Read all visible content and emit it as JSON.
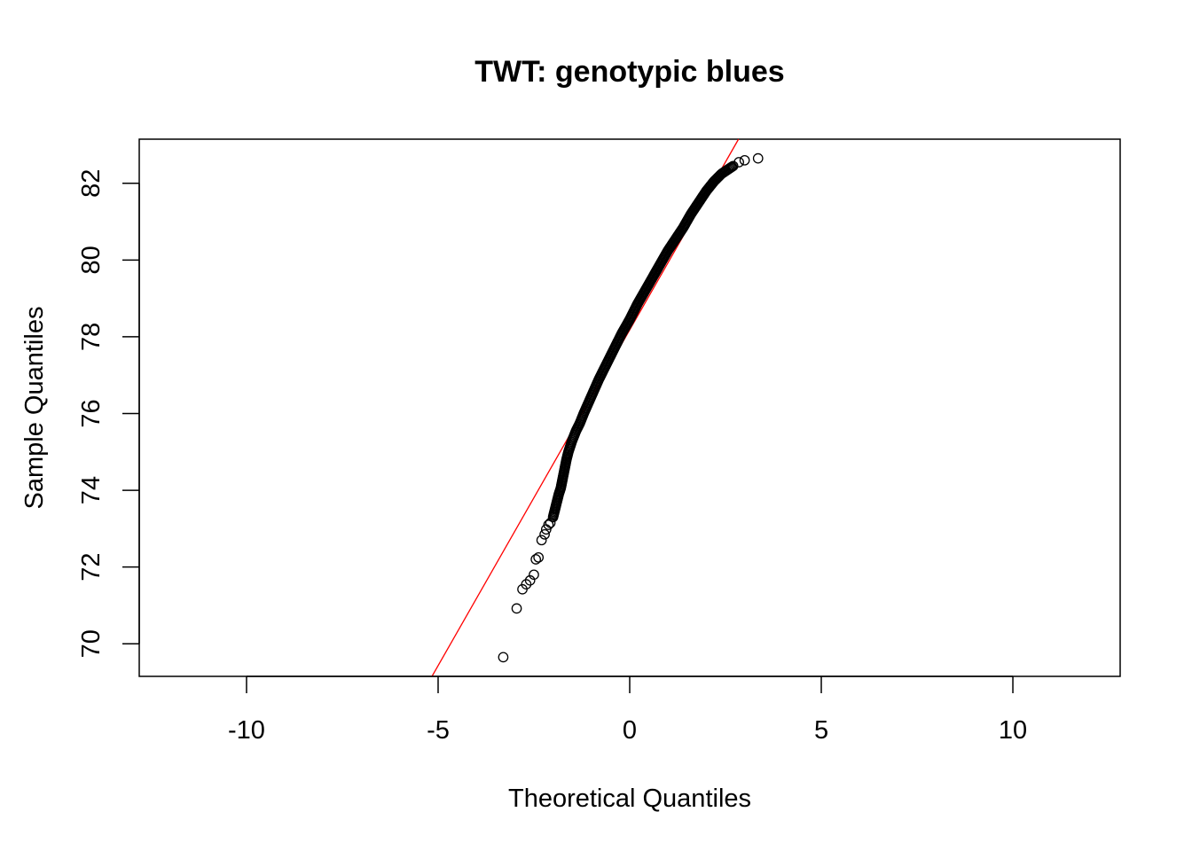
{
  "chart_data": {
    "type": "scatter",
    "title": "TWT: genotypic blues",
    "xlabel": "Theoretical Quantiles",
    "ylabel": "Sample Quantiles",
    "xlim": [
      -12.8,
      12.8
    ],
    "ylim": [
      69.15,
      83.15
    ],
    "xticks": [
      -10,
      -5,
      0,
      5,
      10
    ],
    "yticks": [
      70,
      72,
      74,
      76,
      78,
      80,
      82
    ],
    "grid": false,
    "legend": "none",
    "colors": {
      "points": "#000000",
      "reference_line": "#ff0000",
      "axes": "#000000"
    },
    "reference_line": {
      "slope": 1.75,
      "intercept": 78.18
    },
    "sample_size_approx": 800,
    "series": [
      {
        "marker": "open-circle",
        "points": [
          [
            -3.3,
            69.65
          ],
          [
            -2.95,
            70.92
          ],
          [
            -2.8,
            71.42
          ],
          [
            -2.7,
            71.55
          ],
          [
            -2.6,
            71.65
          ],
          [
            -2.5,
            71.8
          ],
          [
            -2.45,
            72.2
          ],
          [
            -2.38,
            72.25
          ],
          [
            -2.3,
            72.7
          ],
          [
            -2.22,
            72.85
          ],
          [
            -2.18,
            72.98
          ],
          [
            -2.12,
            73.1
          ],
          [
            -2.07,
            73.15
          ],
          [
            -2.0,
            73.3
          ],
          [
            -1.95,
            73.5
          ],
          [
            -1.9,
            73.7
          ],
          [
            -1.85,
            73.9
          ],
          [
            -1.8,
            74.05
          ],
          [
            -1.75,
            74.3
          ],
          [
            -1.7,
            74.55
          ],
          [
            -1.65,
            74.8
          ],
          [
            -1.6,
            75.0
          ],
          [
            -1.55,
            75.15
          ],
          [
            -1.5,
            75.3
          ],
          [
            -1.4,
            75.55
          ],
          [
            -1.3,
            75.75
          ],
          [
            -1.2,
            76.0
          ],
          [
            -1.0,
            76.45
          ],
          [
            -0.8,
            76.9
          ],
          [
            -0.6,
            77.3
          ],
          [
            -0.4,
            77.7
          ],
          [
            -0.2,
            78.1
          ],
          [
            0.0,
            78.45
          ],
          [
            0.2,
            78.85
          ],
          [
            0.4,
            79.2
          ],
          [
            0.6,
            79.55
          ],
          [
            0.8,
            79.9
          ],
          [
            1.0,
            80.25
          ],
          [
            1.2,
            80.55
          ],
          [
            1.4,
            80.85
          ],
          [
            1.6,
            81.2
          ],
          [
            1.8,
            81.5
          ],
          [
            2.0,
            81.8
          ],
          [
            2.2,
            82.05
          ],
          [
            2.4,
            82.25
          ],
          [
            2.55,
            82.35
          ],
          [
            2.7,
            82.45
          ],
          [
            2.85,
            82.55
          ],
          [
            3.0,
            82.6
          ],
          [
            3.35,
            82.65
          ]
        ]
      }
    ]
  }
}
